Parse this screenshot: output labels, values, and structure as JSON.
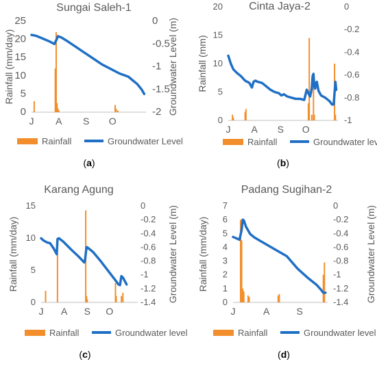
{
  "panel_captions": [
    "(a)",
    "(b)",
    "(c)",
    "(d)"
  ],
  "colors": {
    "rainfall": "#f28e2b",
    "groundwater": "#1f6fc5",
    "text": "#595959",
    "caption": "#000000"
  },
  "chart_data": [
    {
      "type": "bar+line",
      "title": "Sungai Saleh-1",
      "ylabel_left": "Rainfall (mm/day)",
      "ylabel_right": "Groundwater Level (m)",
      "ylim_left": [
        0,
        25
      ],
      "yticks_left": [
        0,
        5,
        10,
        15,
        20,
        25
      ],
      "ylim_right": [
        -2,
        0
      ],
      "yticks_right": [
        -2,
        -1.5,
        -1,
        -0.5,
        0
      ],
      "ytick_labels_right": [
        "-2",
        "-1.5",
        "-1",
        "-0.5",
        "0"
      ],
      "xlim": [
        0,
        130
      ],
      "x_ticks": [
        {
          "x": 0,
          "label": "J"
        },
        {
          "x": 31,
          "label": "A"
        },
        {
          "x": 62,
          "label": "S"
        },
        {
          "x": 92,
          "label": "O"
        }
      ],
      "legend": [
        "Rainfall",
        "Groundwater Level"
      ],
      "rainfall": {
        "x": [
          3,
          27,
          28,
          29,
          30,
          31,
          95,
          96,
          98
        ],
        "values": [
          3,
          12,
          22,
          2.5,
          1,
          0.5,
          2,
          1,
          0.5
        ]
      },
      "groundwater": {
        "x": [
          0,
          5,
          10,
          15,
          20,
          26,
          28,
          30,
          34,
          40,
          50,
          60,
          70,
          80,
          90,
          100,
          110,
          115,
          120,
          125,
          128
        ],
        "values": [
          -0.3,
          -0.32,
          -0.36,
          -0.4,
          -0.44,
          -0.5,
          -0.42,
          -0.33,
          -0.36,
          -0.43,
          -0.56,
          -0.69,
          -0.82,
          -0.95,
          -1.05,
          -1.15,
          -1.22,
          -1.3,
          -1.38,
          -1.5,
          -1.6
        ]
      }
    },
    {
      "type": "bar+line",
      "title": "Cinta Jaya-2",
      "ylabel_left": "Rainfall (mm)",
      "ylabel_right": "",
      "ylim_left": [
        0,
        20
      ],
      "yticks_left": [
        0,
        5,
        10,
        15,
        20
      ],
      "ylim_right": [
        -1,
        0
      ],
      "yticks_right": [
        -1,
        -0.8,
        -0.6,
        -0.4,
        -0.2,
        0
      ],
      "ytick_labels_right": [
        "-1",
        "-0.8",
        "-0.6",
        "-0.4",
        "-0.2",
        "0"
      ],
      "xlim": [
        0,
        130
      ],
      "x_ticks": [
        {
          "x": 0,
          "label": "J"
        },
        {
          "x": 31,
          "label": "A"
        },
        {
          "x": 62,
          "label": "S"
        },
        {
          "x": 92,
          "label": "O"
        }
      ],
      "legend": [
        "Rainfall",
        "Groundwater level"
      ],
      "rainfall": {
        "x": [
          5,
          6,
          20,
          21,
          95,
          96,
          99,
          101,
          102,
          126,
          127
        ],
        "values": [
          1,
          0.5,
          1.5,
          2,
          3,
          14.5,
          1,
          7,
          1,
          10,
          1
        ]
      },
      "groundwater": {
        "x": [
          0,
          3,
          6,
          10,
          15,
          20,
          25,
          28,
          30,
          32,
          35,
          40,
          45,
          50,
          55,
          60,
          63,
          66,
          70,
          75,
          80,
          85,
          90,
          93,
          95,
          97,
          99,
          100,
          101,
          102,
          103,
          104,
          105,
          107,
          110,
          115,
          120,
          123,
          125,
          127,
          128
        ],
        "values": [
          -0.43,
          -0.5,
          -0.55,
          -0.58,
          -0.61,
          -0.65,
          -0.67,
          -0.71,
          -0.66,
          -0.65,
          -0.66,
          -0.67,
          -0.7,
          -0.73,
          -0.75,
          -0.76,
          -0.78,
          -0.77,
          -0.79,
          -0.8,
          -0.81,
          -0.81,
          -0.82,
          -0.73,
          -0.76,
          -0.79,
          -0.72,
          -0.61,
          -0.59,
          -0.7,
          -0.72,
          -0.67,
          -0.66,
          -0.74,
          -0.78,
          -0.8,
          -0.83,
          -0.86,
          -0.86,
          -0.66,
          -0.73
        ]
      }
    },
    {
      "type": "bar+line",
      "title": "Karang Agung",
      "ylabel_left": "Rainfall (mm/day)",
      "ylabel_right": "Groundwater Level (m)",
      "ylim_left": [
        0,
        15
      ],
      "yticks_left": [
        0,
        5,
        10,
        15
      ],
      "ylim_right": [
        -1.4,
        0
      ],
      "yticks_right": [
        -1.4,
        -1.2,
        -1,
        -0.8,
        -0.6,
        -0.4,
        -0.2,
        0
      ],
      "ytick_labels_right": [
        "-1.4",
        "-1.2",
        "-1",
        "-0.8",
        "-0.6",
        "-0.4",
        "-0.2",
        "0"
      ],
      "xlim": [
        0,
        130
      ],
      "x_ticks": [
        {
          "x": 0,
          "label": "J"
        },
        {
          "x": 31,
          "label": "A"
        },
        {
          "x": 62,
          "label": "S"
        },
        {
          "x": 92,
          "label": "O"
        }
      ],
      "legend": [
        "Rainfall",
        "Groundwater level"
      ],
      "rainfall": {
        "x": [
          6,
          22,
          60,
          61,
          62,
          100,
          101,
          108,
          110
        ],
        "values": [
          1.8,
          7.5,
          14.3,
          1,
          0.5,
          3,
          1,
          1,
          1.5
        ]
      },
      "groundwater": {
        "x": [
          0,
          3,
          8,
          12,
          17,
          21,
          22,
          24,
          30,
          40,
          50,
          58,
          59,
          61,
          62,
          70,
          80,
          90,
          100,
          104,
          106,
          108,
          110,
          113,
          115
        ],
        "values": [
          -0.47,
          -0.5,
          -0.53,
          -0.54,
          -0.62,
          -0.7,
          -0.48,
          -0.47,
          -0.52,
          -0.63,
          -0.73,
          -0.82,
          -0.79,
          -0.6,
          -0.6,
          -0.67,
          -0.8,
          -0.94,
          -1.08,
          -1.14,
          -1.15,
          -1.02,
          -1.04,
          -1.1,
          -1.14
        ]
      }
    },
    {
      "type": "bar+line",
      "title": "Padang Sugihan-2",
      "ylabel_left": "Rainfall (mm/day)",
      "ylabel_right": "Groundwater Level (m)",
      "ylim_left": [
        0,
        7
      ],
      "yticks_left": [
        0,
        1,
        2,
        3,
        4,
        5,
        6,
        7
      ],
      "ylim_right": [
        -1.4,
        0
      ],
      "yticks_right": [
        -1.4,
        -1.2,
        -1,
        -0.8,
        -0.6,
        -0.4,
        -0.2,
        0
      ],
      "ytick_labels_right": [
        "-1.4",
        "-1.2",
        "-1",
        "-0.8",
        "-0.6",
        "-0.4",
        "-0.2",
        "0"
      ],
      "xlim": [
        0,
        88
      ],
      "x_ticks": [
        {
          "x": 0,
          "label": "J"
        },
        {
          "x": 31,
          "label": "A"
        },
        {
          "x": 62,
          "label": "S"
        }
      ],
      "legend": [
        "Rainfall",
        "Groundwater level"
      ],
      "rainfall": {
        "x": [
          7,
          8,
          9,
          10,
          14,
          15,
          42,
          43,
          84,
          85
        ],
        "values": [
          6,
          4.5,
          1,
          0.8,
          0.5,
          0.4,
          0.5,
          0.6,
          2,
          2.9
        ]
      },
      "groundwater": {
        "x": [
          0,
          3,
          6,
          8,
          9,
          10,
          12,
          16,
          20,
          30,
          40,
          50,
          60,
          70,
          78,
          82,
          84,
          86
        ],
        "values": [
          -0.45,
          -0.47,
          -0.49,
          -0.35,
          -0.2,
          -0.21,
          -0.3,
          -0.41,
          -0.46,
          -0.55,
          -0.64,
          -0.73,
          -0.91,
          -1.05,
          -1.15,
          -1.22,
          -1.26,
          -1.26
        ]
      }
    }
  ]
}
